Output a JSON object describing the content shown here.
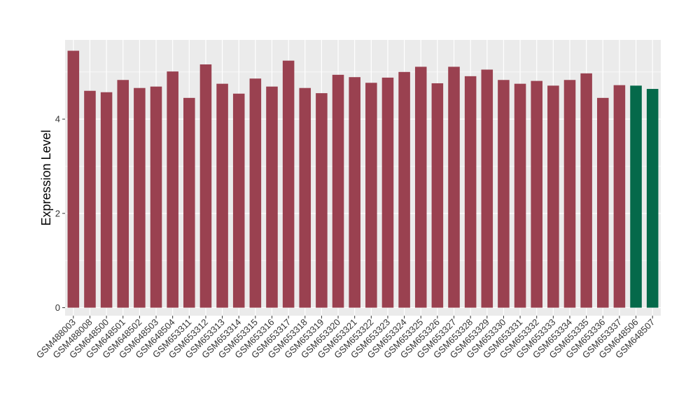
{
  "chart_data": {
    "type": "bar",
    "ylabel": "Expression Level",
    "xlabel": "",
    "ylim": [
      -0.17,
      5.68
    ],
    "yticks": [
      0,
      2,
      4
    ],
    "grid": true,
    "background_color": "#ebebeb",
    "grid_color": "#ffffff",
    "legend": "none",
    "categories": [
      "GSM488003",
      "GSM488008",
      "GSM648500",
      "GSM648501",
      "GSM648502",
      "GSM648503",
      "GSM648504",
      "GSM653311",
      "GSM653312",
      "GSM653313",
      "GSM653314",
      "GSM653315",
      "GSM653316",
      "GSM653317",
      "GSM653318",
      "GSM653319",
      "GSM653320",
      "GSM653321",
      "GSM653322",
      "GSM653323",
      "GSM653324",
      "GSM653325",
      "GSM653326",
      "GSM653327",
      "GSM653328",
      "GSM653329",
      "GSM653330",
      "GSM653331",
      "GSM653332",
      "GSM653333",
      "GSM653334",
      "GSM653335",
      "GSM653336",
      "GSM653337",
      "GSM648506",
      "GSM648507"
    ],
    "values": [
      5.45,
      4.6,
      4.57,
      4.83,
      4.66,
      4.69,
      5.01,
      4.45,
      5.16,
      4.75,
      4.54,
      4.86,
      4.69,
      5.24,
      4.66,
      4.55,
      4.94,
      4.89,
      4.77,
      4.88,
      5.0,
      5.11,
      4.76,
      5.11,
      4.91,
      5.05,
      4.83,
      4.75,
      4.81,
      4.71,
      4.83,
      4.97,
      4.45,
      4.72,
      4.71,
      4.64
    ],
    "bar_colors": [
      "#9a4150",
      "#9a4150",
      "#9a4150",
      "#9a4150",
      "#9a4150",
      "#9a4150",
      "#9a4150",
      "#9a4150",
      "#9a4150",
      "#9a4150",
      "#9a4150",
      "#9a4150",
      "#9a4150",
      "#9a4150",
      "#9a4150",
      "#9a4150",
      "#9a4150",
      "#9a4150",
      "#9a4150",
      "#9a4150",
      "#9a4150",
      "#9a4150",
      "#9a4150",
      "#9a4150",
      "#9a4150",
      "#9a4150",
      "#9a4150",
      "#9a4150",
      "#9a4150",
      "#9a4150",
      "#9a4150",
      "#9a4150",
      "#9a4150",
      "#9a4150",
      "#05694a",
      "#05694a"
    ]
  }
}
